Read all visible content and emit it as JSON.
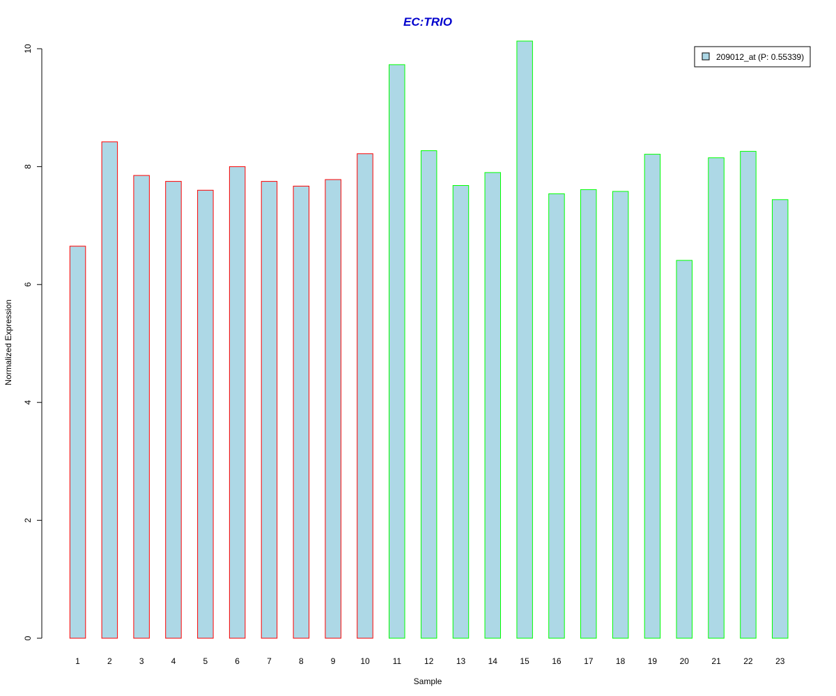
{
  "chart_data": {
    "type": "bar",
    "title": "EC:TRIO",
    "xlabel": "Sample",
    "ylabel": "Normalized Expression",
    "categories": [
      "1",
      "2",
      "3",
      "4",
      "5",
      "6",
      "7",
      "8",
      "9",
      "10",
      "11",
      "12",
      "13",
      "14",
      "15",
      "16",
      "17",
      "18",
      "19",
      "20",
      "21",
      "22",
      "23"
    ],
    "values": [
      6.65,
      8.42,
      7.85,
      7.75,
      7.6,
      8.0,
      7.75,
      7.67,
      7.78,
      8.22,
      9.73,
      8.27,
      7.68,
      7.9,
      10.13,
      7.54,
      7.61,
      7.58,
      8.21,
      6.41,
      8.15,
      8.26,
      7.44
    ],
    "groups": [
      "a",
      "a",
      "a",
      "a",
      "a",
      "a",
      "a",
      "a",
      "a",
      "a",
      "b",
      "b",
      "b",
      "b",
      "b",
      "b",
      "b",
      "b",
      "b",
      "b",
      "b",
      "b",
      "b"
    ],
    "group_colors": {
      "a": "#ff0000",
      "b": "#00ff00"
    },
    "bar_fill": "#add8e6",
    "title_color": "#0000cd",
    "ylim": [
      0,
      10
    ],
    "yticks": [
      0,
      2,
      4,
      6,
      8,
      10
    ],
    "grid": false,
    "legend": {
      "position": "top-right",
      "entries": [
        {
          "label": "209012_at (P: 0.55339)",
          "color": "#add8e6"
        }
      ]
    }
  }
}
